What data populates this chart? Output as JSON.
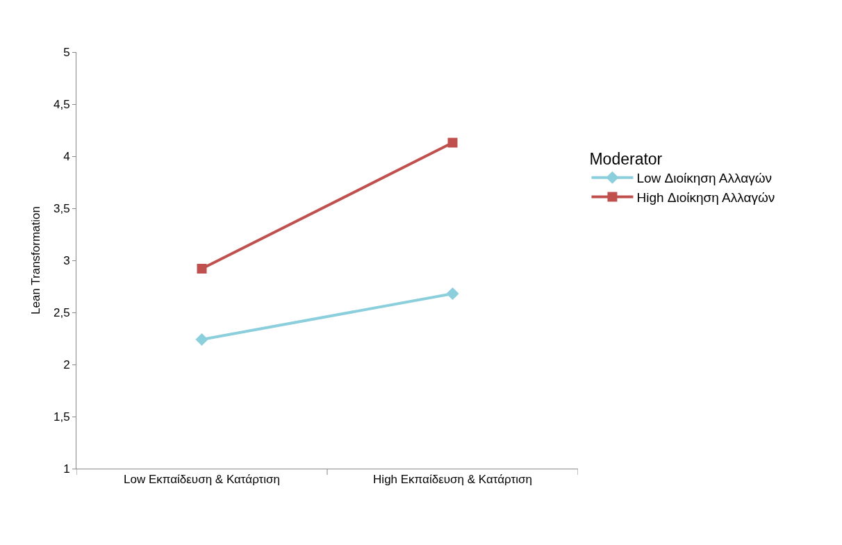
{
  "chart_data": {
    "type": "line",
    "ylabel": "Lean Transformation",
    "legend_title": "Moderator",
    "categories": [
      "Low Εκπαίδευση & Κατάρτιση",
      "High Εκπαίδευση & Κατάρτιση"
    ],
    "series": [
      {
        "name": "Low Διοίκηση Αλλαγών",
        "color": "#8ccfdc",
        "marker": "diamond",
        "values": [
          2.24,
          2.68
        ]
      },
      {
        "name": "High Διοίκηση Αλλαγών",
        "color": "#c0504d",
        "marker": "square",
        "values": [
          2.92,
          4.13
        ]
      }
    ],
    "ylim": [
      1,
      5
    ],
    "yticks": [
      1,
      {
        "value": 1.5,
        "label": "1,5"
      },
      2,
      {
        "value": 2.5,
        "label": "2,5"
      },
      3,
      {
        "value": 3.5,
        "label": "3,5"
      },
      4,
      {
        "value": 4.5,
        "label": "4,5"
      },
      5
    ],
    "legend": "right",
    "line_style": "solid"
  }
}
